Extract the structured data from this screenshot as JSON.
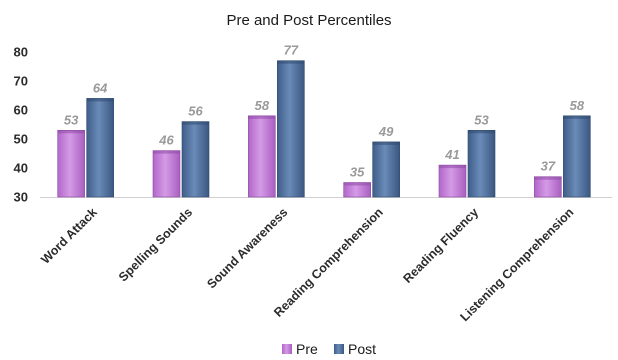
{
  "chart_data": {
    "type": "bar",
    "title": "Pre and Post Percentiles",
    "categories": [
      "Word Attack",
      "Spelling Sounds",
      "Sound Awareness",
      "Reading Comprehension",
      "Reading Fluency",
      "Listening Comprehension"
    ],
    "series": [
      {
        "name": "Pre",
        "values": [
          53,
          46,
          58,
          35,
          41,
          37
        ],
        "color": "#c17ed6"
      },
      {
        "name": "Post",
        "values": [
          64,
          56,
          77,
          49,
          53,
          58
        ],
        "color": "#4f6f9c"
      }
    ],
    "ylim": [
      30,
      80
    ],
    "yticks": [
      "30",
      "40",
      "50",
      "60",
      "70",
      "80"
    ],
    "grid": false,
    "legend": "bottom-center",
    "data_labels": true
  }
}
